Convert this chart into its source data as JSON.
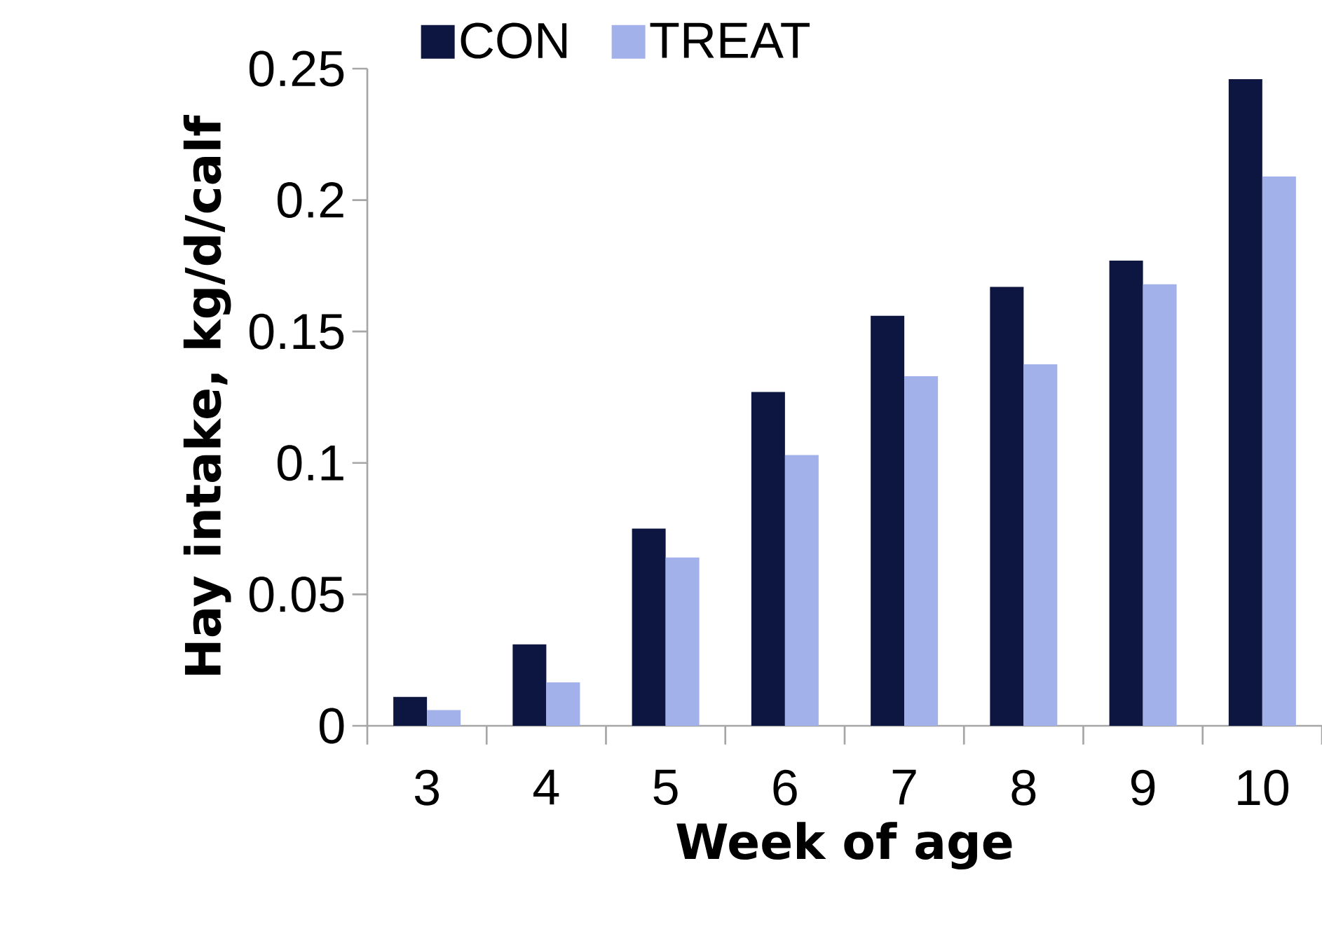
{
  "chart_data": {
    "type": "bar",
    "xlabel": "Week of age",
    "ylabel": "Hay intake, kg/d/calf",
    "categories": [
      "3",
      "4",
      "5",
      "6",
      "7",
      "8",
      "9",
      "10"
    ],
    "series": [
      {
        "name": "CON",
        "color": "#0d1640",
        "values": [
          0.011,
          0.031,
          0.075,
          0.127,
          0.156,
          0.167,
          0.177,
          0.246
        ]
      },
      {
        "name": "TREAT",
        "color": "#a3b1ea",
        "values": [
          0.006,
          0.0165,
          0.064,
          0.103,
          0.133,
          0.1375,
          0.168,
          0.209
        ]
      }
    ],
    "ylim": [
      0,
      0.25
    ],
    "yticks": [
      0,
      0.05,
      0.1,
      0.15,
      0.2,
      0.25
    ],
    "grid": false,
    "legend": "top"
  }
}
